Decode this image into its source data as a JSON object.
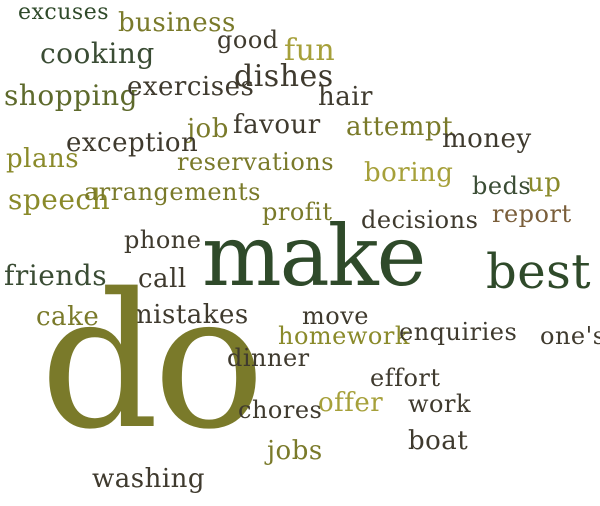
{
  "words": [
    {
      "text": "excuses",
      "color": "#2f4a2a"
    },
    {
      "text": "business",
      "color": "#7a7a2a"
    },
    {
      "text": "good",
      "color": "#3f3a2e"
    },
    {
      "text": "fun",
      "color": "#a6a03a"
    },
    {
      "text": "cooking",
      "color": "#3a4c34"
    },
    {
      "text": "dishes",
      "color": "#3f3a2e"
    },
    {
      "text": "shopping",
      "color": "#5e6a2c"
    },
    {
      "text": "exercises",
      "color": "#3f3a2e"
    },
    {
      "text": "hair",
      "color": "#3f3a2e"
    },
    {
      "text": "job",
      "color": "#7a7a2a"
    },
    {
      "text": "favour",
      "color": "#3f3a2e"
    },
    {
      "text": "attempt",
      "color": "#7a7a2a"
    },
    {
      "text": "money",
      "color": "#3f3a2e"
    },
    {
      "text": "exception",
      "color": "#3f3a2e"
    },
    {
      "text": "plans",
      "color": "#8a8a2a"
    },
    {
      "text": "reservations",
      "color": "#7a7a2a"
    },
    {
      "text": "boring",
      "color": "#a6a03a"
    },
    {
      "text": "beds",
      "color": "#3a4c34"
    },
    {
      "text": "up",
      "color": "#8a8a2a"
    },
    {
      "text": "speech",
      "color": "#8a8a2a"
    },
    {
      "text": "arrangements",
      "color": "#7a7a2a"
    },
    {
      "text": "profit",
      "color": "#7a7a2a"
    },
    {
      "text": "decisions",
      "color": "#3f3a2e"
    },
    {
      "text": "report",
      "color": "#7a5e3a"
    },
    {
      "text": "phone",
      "color": "#3f3a2e"
    },
    {
      "text": "make",
      "color": "#2f4a2a"
    },
    {
      "text": "best",
      "color": "#2f4a2a"
    },
    {
      "text": "friends",
      "color": "#3a4c34"
    },
    {
      "text": "call",
      "color": "#3f3a2e"
    },
    {
      "text": "cake",
      "color": "#7a7a2a"
    },
    {
      "text": "mistakes",
      "color": "#3f3a2e"
    },
    {
      "text": "move",
      "color": "#3f3a2e"
    },
    {
      "text": "homework",
      "color": "#8a8a2a"
    },
    {
      "text": "enquiries",
      "color": "#3f3a2e"
    },
    {
      "text": "one's",
      "color": "#3f3a2e"
    },
    {
      "text": "do",
      "color": "#7a7a2a"
    },
    {
      "text": "dinner",
      "color": "#3f3a2e"
    },
    {
      "text": "effort",
      "color": "#3f3a2e"
    },
    {
      "text": "chores",
      "color": "#3f3a2e"
    },
    {
      "text": "offer",
      "color": "#a6a03a"
    },
    {
      "text": "work",
      "color": "#3f3a2e"
    },
    {
      "text": "jobs",
      "color": "#7a7a2a"
    },
    {
      "text": "boat",
      "color": "#3f3a2e"
    },
    {
      "text": "washing",
      "color": "#3f3a2e"
    }
  ]
}
